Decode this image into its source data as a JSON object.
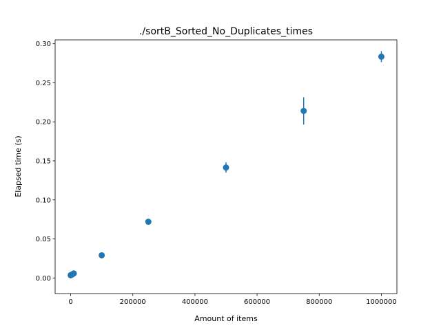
{
  "chart_data": {
    "type": "scatter",
    "title": "./sortB_Sorted_No_Duplicates_times",
    "xlabel": "Amount of items",
    "ylabel": "Elapsed time (s)",
    "xlim": [
      -50000,
      1050000
    ],
    "ylim": [
      -0.02,
      0.305
    ],
    "xticks": [
      0,
      200000,
      400000,
      600000,
      800000,
      1000000
    ],
    "xtick_labels": [
      "0",
      "200000",
      "400000",
      "600000",
      "800000",
      "1000000"
    ],
    "yticks": [
      0.0,
      0.05,
      0.1,
      0.15,
      0.2,
      0.25,
      0.3
    ],
    "ytick_labels": [
      "0.00",
      "0.05",
      "0.10",
      "0.15",
      "0.20",
      "0.25",
      "0.30"
    ],
    "grid": false,
    "marker_color": "#1f77b4",
    "series": [
      {
        "x": [
          100,
          1000,
          5000,
          10000,
          100000,
          250000,
          500000,
          750000,
          1000000
        ],
        "y": [
          0.0035,
          0.0038,
          0.0045,
          0.0058,
          0.029,
          0.072,
          0.1415,
          0.214,
          0.2835
        ],
        "yerr": [
          0.0004,
          0.0004,
          0.0005,
          0.0006,
          0.001,
          0.002,
          0.0065,
          0.0175,
          0.007
        ]
      }
    ]
  }
}
